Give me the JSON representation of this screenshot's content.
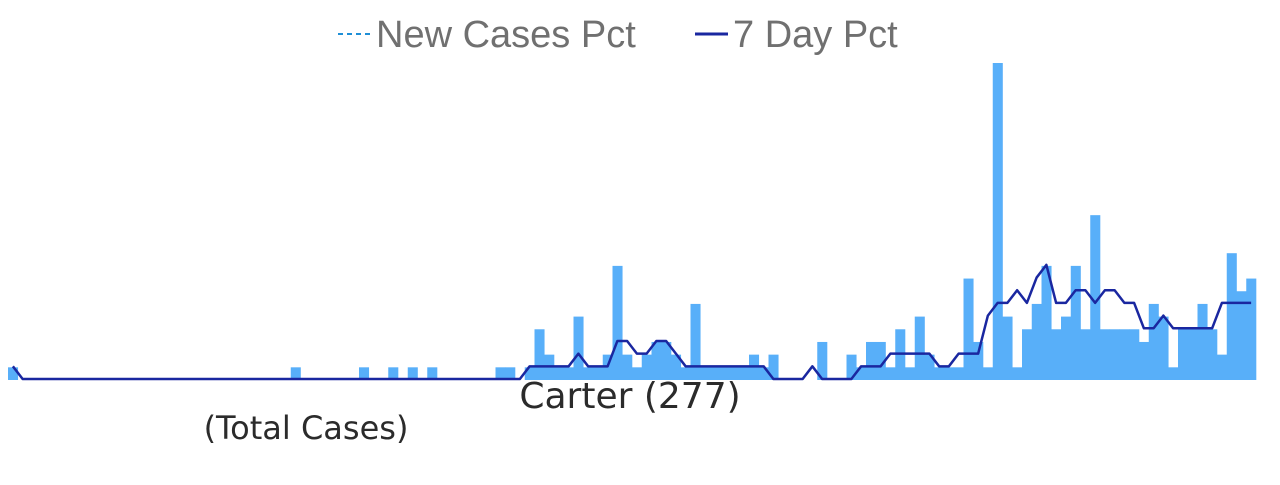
{
  "chart_data": {
    "type": "bar",
    "title": "Carter (277)",
    "subtitle": "(Total Cases)",
    "legend": {
      "placement": "top-center",
      "entries": [
        {
          "name": "New Cases Pct",
          "style": "dashed"
        },
        {
          "name": "7 Day Pct",
          "style": "solid"
        }
      ]
    },
    "grid": false,
    "axes_visible": false,
    "ylim": [
      0,
      25
    ],
    "colors": {
      "bars": "#58aff9",
      "line": "#1a27a0",
      "legend_dashed": "#1f8fd6"
    },
    "series": [
      {
        "name": "New Cases Pct",
        "type": "bar",
        "values": [
          1,
          0,
          0,
          0,
          0,
          0,
          0,
          0,
          0,
          0,
          0,
          0,
          0,
          0,
          0,
          0,
          0,
          0,
          0,
          0,
          0,
          0,
          0,
          0,
          0,
          0,
          0,
          0,
          0,
          1,
          0,
          0,
          0,
          0,
          0,
          0,
          1,
          0,
          0,
          1,
          0,
          1,
          0,
          1,
          0,
          0,
          0,
          0,
          0,
          0,
          1,
          1,
          0,
          1,
          4,
          2,
          1,
          1,
          5,
          1,
          1,
          2,
          9,
          2,
          1,
          2,
          3,
          3,
          2,
          1,
          6,
          1,
          1,
          1,
          1,
          1,
          2,
          1,
          2,
          0,
          0,
          0,
          0,
          3,
          0,
          0,
          2,
          1,
          3,
          3,
          1,
          4,
          1,
          5,
          2,
          1,
          1,
          1,
          8,
          3,
          1,
          25,
          5,
          1,
          4,
          6,
          9,
          4,
          5,
          9,
          4,
          13,
          4,
          4,
          4,
          4,
          3,
          6,
          5,
          1,
          4,
          4,
          6,
          4,
          2,
          10,
          7,
          8
        ]
      },
      {
        "name": "7 Day Pct",
        "type": "line",
        "values": [
          1,
          0,
          0,
          0,
          0,
          0,
          0,
          0,
          0,
          0,
          0,
          0,
          0,
          0,
          0,
          0,
          0,
          0,
          0,
          0,
          0,
          0,
          0,
          0,
          0,
          0,
          0,
          0,
          0,
          0,
          0,
          0,
          0,
          0,
          0,
          0,
          0,
          0,
          0,
          0,
          0,
          0,
          0,
          0,
          0,
          0,
          0,
          0,
          0,
          0,
          0,
          0,
          0,
          1,
          1,
          1,
          1,
          1,
          2,
          1,
          1,
          1,
          3,
          3,
          2,
          2,
          3,
          3,
          2,
          1,
          1,
          1,
          1,
          1,
          1,
          1,
          1,
          1,
          0,
          0,
          0,
          0,
          1,
          0,
          0,
          0,
          0,
          1,
          1,
          1,
          2,
          2,
          2,
          2,
          2,
          1,
          1,
          2,
          2,
          2,
          5,
          6,
          6,
          7,
          6,
          8,
          9,
          6,
          6,
          7,
          7,
          6,
          7,
          7,
          6,
          6,
          4,
          4,
          5,
          4,
          4,
          4,
          4,
          4,
          6,
          6,
          6,
          6
        ]
      }
    ]
  }
}
